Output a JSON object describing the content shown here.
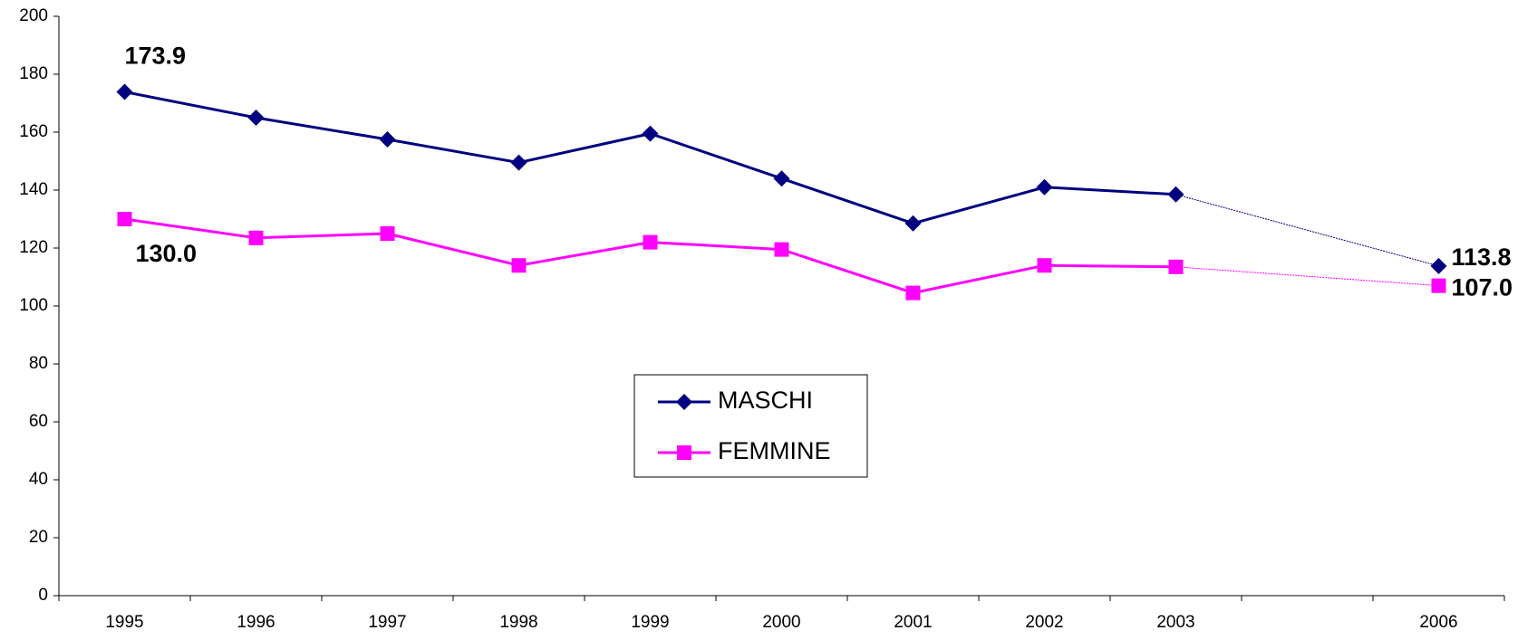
{
  "chart_data": {
    "type": "line",
    "categories": [
      "1995",
      "1996",
      "1997",
      "1998",
      "1999",
      "2000",
      "2001",
      "2002",
      "2003",
      null,
      "2006"
    ],
    "series": [
      {
        "name": "MASCHI",
        "color": "#000080",
        "marker": "diamond",
        "values": [
          173.9,
          165,
          157.5,
          149.5,
          159.5,
          144,
          128.5,
          141,
          138.5,
          null,
          113.8
        ],
        "value_labels": [
          "173.9",
          null,
          null,
          null,
          null,
          null,
          null,
          null,
          null,
          null,
          "113.8"
        ]
      },
      {
        "name": "FEMMINE",
        "color": "#ff00ff",
        "marker": "square",
        "values": [
          130.0,
          123.5,
          125,
          114,
          122,
          119.5,
          104.5,
          114,
          113.5,
          null,
          107.0
        ],
        "value_labels": [
          "130.0",
          null,
          null,
          null,
          null,
          null,
          null,
          null,
          null,
          null,
          "107.0"
        ]
      }
    ],
    "ylim": [
      0,
      200
    ],
    "yticks": [
      0,
      20,
      40,
      60,
      80,
      100,
      120,
      140,
      160,
      180,
      200
    ],
    "grid": false,
    "legend": "center"
  }
}
